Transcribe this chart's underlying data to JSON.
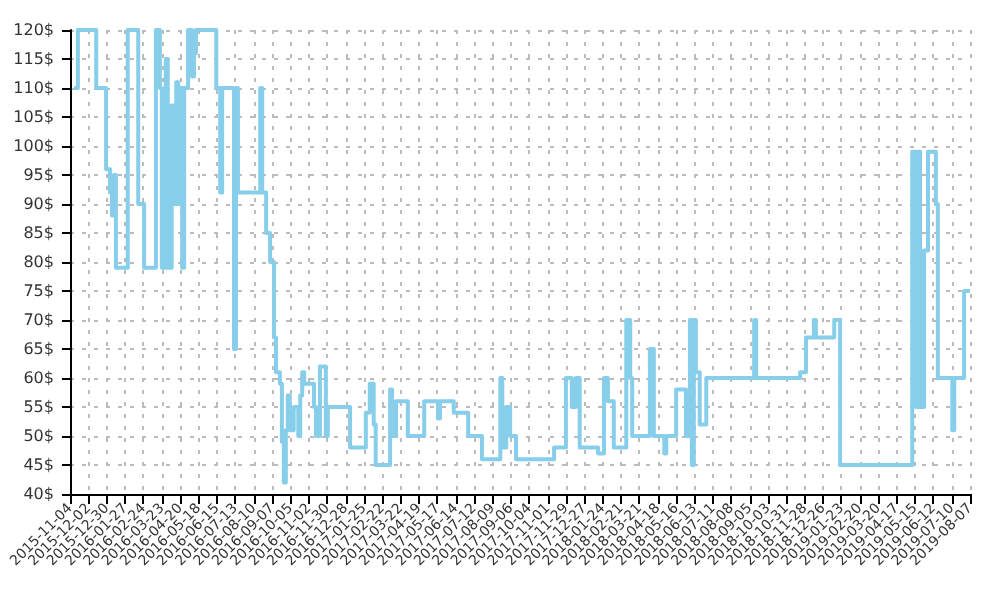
{
  "chart_data": {
    "type": "step",
    "grid": true,
    "marker": "none",
    "line_style": "solid",
    "ylim": [
      40,
      120
    ],
    "yticks": [
      {
        "value": 40,
        "label": "40$"
      },
      {
        "value": 45,
        "label": "45$"
      },
      {
        "value": 50,
        "label": "50$"
      },
      {
        "value": 55,
        "label": "55$"
      },
      {
        "value": 60,
        "label": "60$"
      },
      {
        "value": 65,
        "label": "65$"
      },
      {
        "value": 70,
        "label": "70$"
      },
      {
        "value": 75,
        "label": "75$"
      },
      {
        "value": 80,
        "label": "80$"
      },
      {
        "value": 85,
        "label": "85$"
      },
      {
        "value": 90,
        "label": "90$"
      },
      {
        "value": 95,
        "label": "95$"
      },
      {
        "value": 100,
        "label": "100$"
      },
      {
        "value": 105,
        "label": "105$"
      },
      {
        "value": 110,
        "label": "110$"
      },
      {
        "value": 115,
        "label": "115$"
      },
      {
        "value": 120,
        "label": "120$"
      }
    ],
    "xlim": [
      "2015-11-04",
      "2019-08-07"
    ],
    "xticks": [
      "2015-11-04",
      "2015-12-02",
      "2015-12-30",
      "2016-01-27",
      "2016-02-24",
      "2016-03-23",
      "2016-04-20",
      "2016-05-18",
      "2016-06-15",
      "2016-07-13",
      "2016-08-10",
      "2016-09-07",
      "2016-10-05",
      "2016-11-02",
      "2016-11-30",
      "2016-12-28",
      "2017-01-25",
      "2017-02-22",
      "2017-03-22",
      "2017-04-19",
      "2017-05-17",
      "2017-06-14",
      "2017-07-12",
      "2017-08-09",
      "2017-09-06",
      "2017-10-04",
      "2017-11-01",
      "2017-11-29",
      "2017-12-27",
      "2018-01-24",
      "2018-02-21",
      "2018-03-21",
      "2018-04-18",
      "2018-05-16",
      "2018-06-13",
      "2018-07-11",
      "2018-08-08",
      "2018-09-05",
      "2018-10-03",
      "2018-10-31",
      "2018-11-28",
      "2018-12-26",
      "2019-01-23",
      "2019-02-20",
      "2019-03-20",
      "2019-04-17",
      "2019-05-15",
      "2019-06-12",
      "2019-07-10",
      "2019-08-07"
    ],
    "series": [
      {
        "color": "#87ceeb",
        "x": [
          "2015-11-10",
          "2015-11-16",
          "2015-12-14",
          "2015-12-29",
          "2016-01-04",
          "2016-01-07",
          "2016-01-10",
          "2016-01-13",
          "2016-01-31",
          "2016-02-16",
          "2016-02-25",
          "2016-03-14",
          "2016-03-20",
          "2016-03-23",
          "2016-03-29",
          "2016-04-01",
          "2016-04-07",
          "2016-04-11",
          "2016-04-14",
          "2016-04-17",
          "2016-04-20",
          "2016-04-23",
          "2016-04-26",
          "2016-05-02",
          "2016-05-08",
          "2016-05-11",
          "2016-05-14",
          "2016-06-14",
          "2016-06-20",
          "2016-06-23",
          "2016-07-11",
          "2016-07-14",
          "2016-07-17",
          "2016-08-20",
          "2016-08-23",
          "2016-08-29",
          "2016-09-04",
          "2016-09-10",
          "2016-09-13",
          "2016-09-19",
          "2016-09-22",
          "2016-09-25",
          "2016-09-28",
          "2016-10-01",
          "2016-10-04",
          "2016-10-10",
          "2016-10-17",
          "2016-10-20",
          "2016-10-23",
          "2016-10-26",
          "2016-11-10",
          "2016-11-13",
          "2016-11-19",
          "2016-11-28",
          "2016-12-01",
          "2017-01-04",
          "2017-01-28",
          "2017-02-03",
          "2017-02-09",
          "2017-02-12",
          "2017-03-06",
          "2017-03-09",
          "2017-03-15",
          "2017-04-02",
          "2017-04-27",
          "2017-05-18",
          "2017-05-21",
          "2017-06-11",
          "2017-07-03",
          "2017-07-24",
          "2017-08-21",
          "2017-08-24",
          "2017-08-30",
          "2017-09-05",
          "2017-09-14",
          "2017-11-11",
          "2017-11-29",
          "2017-12-08",
          "2017-12-14",
          "2017-12-20",
          "2018-01-17",
          "2018-01-26",
          "2018-02-01",
          "2018-02-10",
          "2018-03-01",
          "2018-03-07",
          "2018-03-10",
          "2018-04-06",
          "2018-04-12",
          "2018-04-28",
          "2018-05-01",
          "2018-05-16",
          "2018-05-31",
          "2018-06-06",
          "2018-06-09",
          "2018-06-12",
          "2018-06-15",
          "2018-06-21",
          "2018-07-01",
          "2018-09-12",
          "2018-09-15",
          "2018-11-21",
          "2018-11-30",
          "2018-12-12",
          "2018-12-15",
          "2019-01-12",
          "2019-01-21",
          "2019-05-11",
          "2019-05-17",
          "2019-05-20",
          "2019-05-23",
          "2019-05-29",
          "2019-06-04",
          "2019-06-16",
          "2019-06-19",
          "2019-07-11",
          "2019-07-14",
          "2019-07-29",
          "2019-08-07"
        ],
        "values": [
          110,
          120,
          110,
          96,
          92,
          88,
          95,
          79,
          120,
          90,
          79,
          120,
          110,
          79,
          115,
          79,
          107,
          90,
          111,
          90,
          110,
          79,
          110,
          120,
          112,
          116,
          120,
          110,
          92,
          110,
          65,
          110,
          92,
          110,
          92,
          85,
          80,
          67,
          61,
          59,
          49,
          42,
          51,
          57,
          51,
          55,
          50,
          57,
          61,
          59,
          55,
          50,
          62,
          50,
          55,
          48,
          54,
          59,
          52,
          45,
          58,
          50,
          56,
          50,
          56,
          53,
          56,
          54,
          50,
          46,
          60,
          48,
          55,
          50,
          46,
          48,
          60,
          55,
          60,
          48,
          47,
          60,
          56,
          48,
          70,
          60,
          50,
          65,
          50,
          47,
          50,
          58,
          50,
          70,
          45,
          70,
          61,
          52,
          60,
          70,
          60,
          61,
          67,
          70,
          67,
          70,
          45,
          99,
          55,
          99,
          55,
          82,
          99,
          90,
          60,
          51,
          60,
          75,
          75
        ]
      }
    ]
  }
}
